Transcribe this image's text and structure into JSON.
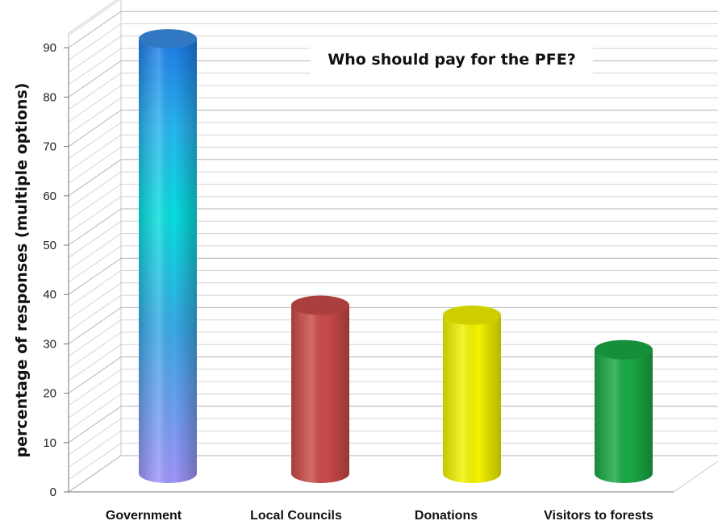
{
  "chart_data": {
    "type": "bar",
    "title": "Who should pay for the PFE?",
    "xlabel": "",
    "ylabel": "percentage of responses  (multiple options)",
    "categories": [
      "Government",
      "Local Councils",
      "Donations",
      "Visitors to forests"
    ],
    "values": [
      91,
      37,
      35,
      28
    ],
    "ylim": [
      0,
      90
    ],
    "yticks": [
      "0",
      "10",
      "20",
      "30",
      "40",
      "50",
      "60",
      "70",
      "80",
      "90"
    ],
    "grid": true,
    "legend": "none",
    "colors": [
      "#3a8ee6",
      "#c94a48",
      "#f2f200",
      "#19a844"
    ]
  }
}
